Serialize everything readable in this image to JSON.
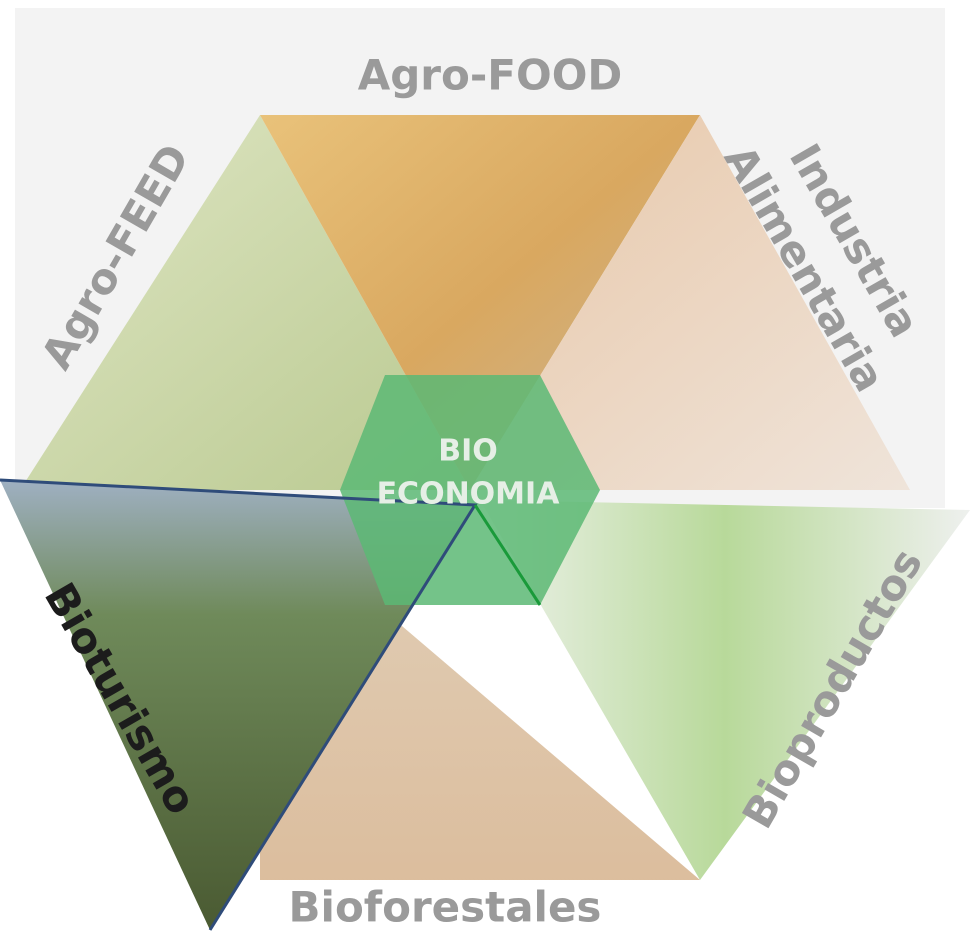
{
  "segments": {
    "agro_food": "Agro-FOOD",
    "agro_feed": "Agro-FEED",
    "industria_alimentaria": [
      "Industria",
      "Alimentaria"
    ],
    "bioturismo": "Bioturismo",
    "bioproductos": "Bioproductos",
    "bioforestales": "Bioforestales"
  },
  "center": [
    "BIO",
    "ECONOMIA"
  ]
}
